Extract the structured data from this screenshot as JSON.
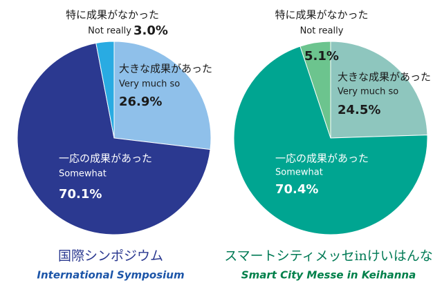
{
  "chart_data": [
    {
      "type": "pie",
      "title": "国際シンポジウム",
      "subtitle": "International Symposium",
      "categories": [
        "大きな成果があった",
        "一応の成果があった",
        "特に成果がなかった"
      ],
      "categories_en": [
        "Very much so",
        "Somewhat",
        "Not really"
      ],
      "values": [
        26.9,
        70.1,
        3.0
      ],
      "value_labels": [
        "26.9%",
        "70.1%",
        "3.0%"
      ],
      "colors": [
        "#8fc0ea",
        "#2b3990",
        "#29abe2"
      ],
      "title_color": "#2b3990",
      "subtitle_color": "#1c55a8"
    },
    {
      "type": "pie",
      "title": "スマートシティメッセinけいはんな",
      "subtitle": "Smart City Messe in Keihanna",
      "categories": [
        "大きな成果があった",
        "一応の成果があった",
        "特に成果がなかった"
      ],
      "categories_en": [
        "Very much so",
        "Somewhat",
        "Not really"
      ],
      "values": [
        24.5,
        70.4,
        5.1
      ],
      "value_labels": [
        "24.5%",
        "70.4%",
        "5.1%"
      ],
      "colors": [
        "#8ec6be",
        "#00a591",
        "#6cc48e"
      ],
      "title_color": "#007a55",
      "subtitle_color": "#00804a"
    }
  ]
}
